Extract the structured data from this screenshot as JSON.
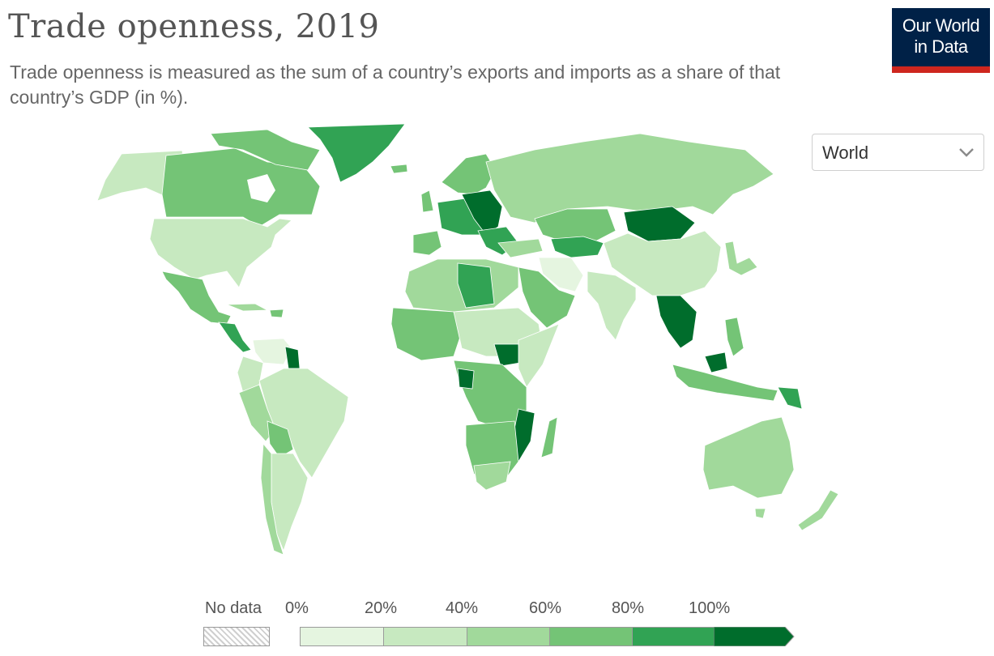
{
  "header": {
    "title": "Trade openness, 2019",
    "subtitle": "Trade openness is measured as the sum of a country’s exports and imports as a share of that country’s GDP (in %).",
    "logo_line1": "Our World",
    "logo_line2": "in Data"
  },
  "region_select": {
    "selected": "World",
    "icon": "chevron-down-icon"
  },
  "legend": {
    "no_data_label": "No data",
    "bins": [
      {
        "label": "0%",
        "color": "#e5f5e0"
      },
      {
        "label": "20%",
        "color": "#c7e9c0"
      },
      {
        "label": "40%",
        "color": "#a1d99b"
      },
      {
        "label": "60%",
        "color": "#74c476"
      },
      {
        "label": "80%",
        "color": "#31a354"
      },
      {
        "label": "100%",
        "color": "#006d2c"
      }
    ]
  },
  "colors": {
    "brand_navy": "#002147",
    "brand_red": "#ce261e",
    "ocean": "#ffffff",
    "border": "#ffffff"
  }
}
